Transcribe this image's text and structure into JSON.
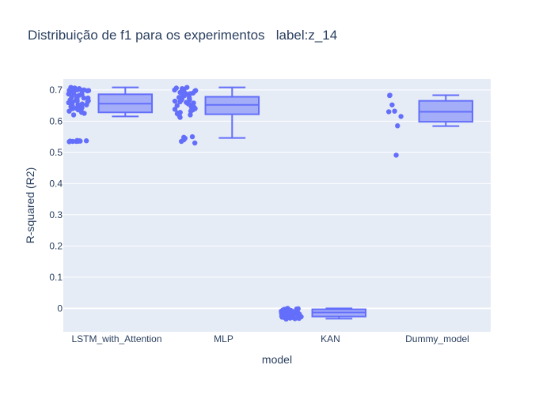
{
  "chart_data": {
    "type": "box",
    "title": "Distribuição de f1 para os experimentos   label:z_14",
    "xlabel": "model",
    "ylabel": "R-squared (R2)",
    "ylim": [
      -0.075,
      0.735
    ],
    "yticks": [
      0,
      0.1,
      0.2,
      0.3,
      0.4,
      0.5,
      0.6,
      0.7
    ],
    "ytick_labels": [
      "0",
      "0.1",
      "0.2",
      "0.3",
      "0.4",
      "0.5",
      "0.6",
      "0.7"
    ],
    "grid": true,
    "colors": {
      "series": "#636efa",
      "fill": "rgba(99,110,250,0.5)",
      "plot_bg": "#e5ecf6",
      "text": "#2a3f5f"
    },
    "categories": [
      "LSTM_with_Attention",
      "MLP",
      "KAN",
      "Dummy_model"
    ],
    "boxes": [
      {
        "name": "LSTM_with_Attention",
        "lowerfence": 0.615,
        "q1": 0.628,
        "median": 0.656,
        "q3": 0.686,
        "upperfence": 0.708,
        "points": [
          0.536,
          0.537,
          0.536,
          0.535,
          0.538,
          0.536,
          0.534,
          0.537,
          0.536,
          0.535,
          0.62,
          0.625,
          0.628,
          0.632,
          0.636,
          0.64,
          0.643,
          0.646,
          0.65,
          0.653,
          0.656,
          0.659,
          0.662,
          0.665,
          0.668,
          0.671,
          0.674,
          0.677,
          0.68,
          0.683,
          0.686,
          0.69,
          0.694,
          0.698,
          0.7,
          0.702,
          0.704,
          0.706,
          0.708,
          0.7,
          0.703,
          0.705,
          0.699,
          0.697,
          0.701,
          0.652,
          0.645,
          0.661,
          0.638,
          0.668,
          0.674,
          0.63,
          0.658,
          0.649,
          0.664,
          0.691,
          0.687,
          0.641,
          0.655,
          0.699
        ]
      },
      {
        "name": "MLP",
        "lowerfence": 0.546,
        "q1": 0.622,
        "median": 0.652,
        "q3": 0.678,
        "upperfence": 0.708,
        "points": [
          0.53,
          0.535,
          0.54,
          0.545,
          0.548,
          0.55,
          0.547,
          0.542,
          0.612,
          0.616,
          0.62,
          0.624,
          0.628,
          0.632,
          0.636,
          0.64,
          0.644,
          0.648,
          0.652,
          0.656,
          0.66,
          0.664,
          0.668,
          0.672,
          0.676,
          0.68,
          0.684,
          0.688,
          0.692,
          0.696,
          0.7,
          0.704,
          0.708,
          0.702,
          0.706,
          0.698,
          0.694,
          0.69,
          0.686,
          0.682,
          0.65,
          0.645,
          0.658,
          0.662,
          0.638,
          0.626,
          0.668,
          0.674,
          0.655,
          0.642
        ]
      },
      {
        "name": "KAN",
        "lowerfence": -0.033,
        "q1": -0.026,
        "median": -0.013,
        "q3": -0.003,
        "upperfence": 0.0,
        "points": [
          -0.034,
          -0.032,
          -0.03,
          -0.028,
          -0.026,
          -0.024,
          -0.022,
          -0.02,
          -0.018,
          -0.016,
          -0.014,
          -0.012,
          -0.01,
          -0.008,
          -0.006,
          -0.004,
          -0.002,
          0.0,
          -0.001,
          -0.003,
          -0.005,
          -0.009,
          -0.013,
          -0.017,
          -0.021,
          -0.025,
          -0.029,
          -0.031,
          -0.015,
          -0.011,
          -0.007,
          -0.019,
          -0.023,
          -0.027,
          -0.002,
          -0.033,
          -0.012,
          -0.018,
          -0.006,
          -0.024
        ]
      },
      {
        "name": "Dummy_model",
        "lowerfence": 0.584,
        "q1": 0.598,
        "median": 0.63,
        "q3": 0.665,
        "upperfence": 0.683,
        "points": [
          0.683,
          0.682,
          0.652,
          0.632,
          0.63,
          0.615,
          0.585,
          0.491
        ]
      }
    ]
  }
}
